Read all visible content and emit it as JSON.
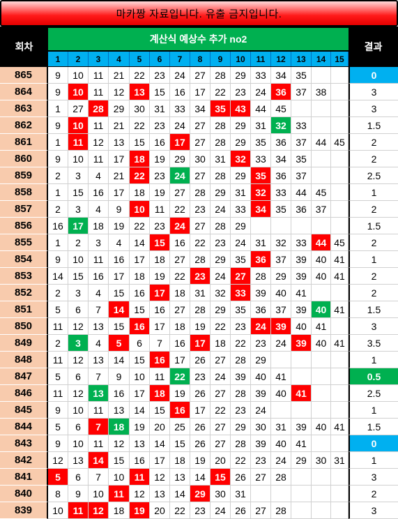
{
  "banner": "마카짱 자료입니다. 유출 금지입니다.",
  "header": {
    "round_label": "회차",
    "title": "계산식 예상수 추가 no2",
    "result_label": "결과",
    "cols": [
      "1",
      "2",
      "3",
      "4",
      "5",
      "6",
      "7",
      "8",
      "9",
      "10",
      "11",
      "12",
      "13",
      "14",
      "15"
    ]
  },
  "colors": {
    "red": "#ff0000",
    "green": "#00b050",
    "blue": "#00b0f0",
    "round_bg": "#f8cbad"
  },
  "rows": [
    {
      "round": "865",
      "cells": [
        "9",
        "10",
        "11",
        "21",
        "22",
        "23",
        "24",
        "27",
        "28",
        "29",
        "33",
        "34",
        "35",
        "",
        ""
      ],
      "red": [],
      "green": [],
      "result": "0",
      "result_style": "blue"
    },
    {
      "round": "864",
      "cells": [
        "9",
        "10",
        "11",
        "12",
        "13",
        "15",
        "16",
        "17",
        "22",
        "23",
        "24",
        "36",
        "37",
        "38",
        ""
      ],
      "red": [
        1,
        4,
        11
      ],
      "green": [],
      "result": "3",
      "result_style": ""
    },
    {
      "round": "863",
      "cells": [
        "1",
        "27",
        "28",
        "29",
        "30",
        "31",
        "33",
        "34",
        "35",
        "43",
        "44",
        "45",
        "",
        "",
        ""
      ],
      "red": [
        2,
        8,
        9
      ],
      "green": [],
      "result": "3",
      "result_style": ""
    },
    {
      "round": "862",
      "cells": [
        "9",
        "10",
        "11",
        "21",
        "22",
        "23",
        "24",
        "27",
        "28",
        "29",
        "31",
        "32",
        "33",
        "",
        ""
      ],
      "red": [
        1
      ],
      "green": [
        11
      ],
      "result": "1.5",
      "result_style": ""
    },
    {
      "round": "861",
      "cells": [
        "1",
        "11",
        "12",
        "13",
        "15",
        "16",
        "17",
        "27",
        "28",
        "29",
        "35",
        "36",
        "37",
        "44",
        "45"
      ],
      "red": [
        1,
        6
      ],
      "green": [],
      "result": "2",
      "result_style": ""
    },
    {
      "round": "860",
      "cells": [
        "9",
        "10",
        "11",
        "17",
        "18",
        "19",
        "29",
        "30",
        "31",
        "32",
        "33",
        "34",
        "35",
        "",
        ""
      ],
      "red": [
        4,
        9
      ],
      "green": [],
      "result": "2",
      "result_style": ""
    },
    {
      "round": "859",
      "cells": [
        "2",
        "3",
        "4",
        "21",
        "22",
        "23",
        "24",
        "27",
        "28",
        "29",
        "35",
        "36",
        "37",
        "",
        ""
      ],
      "red": [
        4,
        10
      ],
      "green": [
        6
      ],
      "result": "2.5",
      "result_style": ""
    },
    {
      "round": "858",
      "cells": [
        "1",
        "15",
        "16",
        "17",
        "18",
        "19",
        "27",
        "28",
        "29",
        "31",
        "32",
        "33",
        "44",
        "45",
        ""
      ],
      "red": [
        10
      ],
      "green": [],
      "result": "1",
      "result_style": ""
    },
    {
      "round": "857",
      "cells": [
        "2",
        "3",
        "4",
        "9",
        "10",
        "11",
        "22",
        "23",
        "24",
        "33",
        "34",
        "35",
        "36",
        "37",
        ""
      ],
      "red": [
        4,
        10
      ],
      "green": [],
      "result": "2",
      "result_style": ""
    },
    {
      "round": "856",
      "cells": [
        "16",
        "17",
        "18",
        "19",
        "22",
        "23",
        "24",
        "27",
        "28",
        "29",
        "",
        "",
        "",
        "",
        ""
      ],
      "red": [
        6
      ],
      "green": [
        1
      ],
      "result": "1.5",
      "result_style": ""
    },
    {
      "round": "855",
      "cells": [
        "1",
        "2",
        "3",
        "4",
        "14",
        "15",
        "16",
        "22",
        "23",
        "24",
        "31",
        "32",
        "33",
        "44",
        "45"
      ],
      "red": [
        5,
        13
      ],
      "green": [],
      "result": "2",
      "result_style": ""
    },
    {
      "round": "854",
      "cells": [
        "9",
        "10",
        "11",
        "16",
        "17",
        "18",
        "27",
        "28",
        "29",
        "35",
        "36",
        "37",
        "39",
        "40",
        "41"
      ],
      "red": [
        10
      ],
      "green": [],
      "result": "1",
      "result_style": ""
    },
    {
      "round": "853",
      "cells": [
        "14",
        "15",
        "16",
        "17",
        "18",
        "19",
        "22",
        "23",
        "24",
        "27",
        "28",
        "29",
        "39",
        "40",
        "41"
      ],
      "red": [
        7,
        9
      ],
      "green": [],
      "result": "2",
      "result_style": ""
    },
    {
      "round": "852",
      "cells": [
        "2",
        "3",
        "4",
        "15",
        "16",
        "17",
        "18",
        "31",
        "32",
        "33",
        "39",
        "40",
        "41",
        "",
        ""
      ],
      "red": [
        5,
        9
      ],
      "green": [],
      "result": "2",
      "result_style": ""
    },
    {
      "round": "851",
      "cells": [
        "5",
        "6",
        "7",
        "14",
        "15",
        "16",
        "27",
        "28",
        "29",
        "35",
        "36",
        "37",
        "39",
        "40",
        "41"
      ],
      "red": [
        3
      ],
      "green": [
        13
      ],
      "result": "1.5",
      "result_style": ""
    },
    {
      "round": "850",
      "cells": [
        "11",
        "12",
        "13",
        "15",
        "16",
        "17",
        "18",
        "19",
        "22",
        "23",
        "24",
        "39",
        "40",
        "41",
        ""
      ],
      "red": [
        4,
        10,
        11
      ],
      "green": [],
      "result": "3",
      "result_style": ""
    },
    {
      "round": "849",
      "cells": [
        "2",
        "3",
        "4",
        "5",
        "6",
        "7",
        "16",
        "17",
        "18",
        "22",
        "23",
        "24",
        "39",
        "40",
        "41"
      ],
      "red": [
        3,
        7,
        12
      ],
      "green": [
        1
      ],
      "result": "3.5",
      "result_style": ""
    },
    {
      "round": "848",
      "cells": [
        "11",
        "12",
        "13",
        "14",
        "15",
        "16",
        "17",
        "26",
        "27",
        "28",
        "29",
        "",
        "",
        "",
        ""
      ],
      "red": [
        5
      ],
      "green": [],
      "result": "1",
      "result_style": ""
    },
    {
      "round": "847",
      "cells": [
        "5",
        "6",
        "7",
        "9",
        "10",
        "11",
        "22",
        "23",
        "24",
        "39",
        "40",
        "41",
        "",
        "",
        ""
      ],
      "red": [],
      "green": [
        6
      ],
      "result": "0.5",
      "result_style": "green"
    },
    {
      "round": "846",
      "cells": [
        "11",
        "12",
        "13",
        "16",
        "17",
        "18",
        "19",
        "26",
        "27",
        "28",
        "39",
        "40",
        "41",
        "",
        ""
      ],
      "red": [
        5,
        12
      ],
      "green": [
        2
      ],
      "result": "2.5",
      "result_style": ""
    },
    {
      "round": "845",
      "cells": [
        "9",
        "10",
        "11",
        "13",
        "14",
        "15",
        "16",
        "17",
        "22",
        "23",
        "24",
        "",
        "",
        "",
        ""
      ],
      "red": [
        6
      ],
      "green": [],
      "result": "1",
      "result_style": ""
    },
    {
      "round": "844",
      "cells": [
        "5",
        "6",
        "7",
        "18",
        "19",
        "20",
        "25",
        "26",
        "27",
        "29",
        "30",
        "31",
        "39",
        "40",
        "41"
      ],
      "red": [
        2
      ],
      "green": [
        3
      ],
      "result": "1.5",
      "result_style": ""
    },
    {
      "round": "843",
      "cells": [
        "9",
        "10",
        "11",
        "12",
        "13",
        "14",
        "15",
        "26",
        "27",
        "28",
        "39",
        "40",
        "41",
        "",
        ""
      ],
      "red": [],
      "green": [],
      "result": "0",
      "result_style": "blue"
    },
    {
      "round": "842",
      "cells": [
        "12",
        "13",
        "14",
        "15",
        "16",
        "17",
        "18",
        "19",
        "20",
        "22",
        "23",
        "24",
        "29",
        "30",
        "31"
      ],
      "red": [
        2
      ],
      "green": [],
      "result": "1",
      "result_style": ""
    },
    {
      "round": "841",
      "cells": [
        "5",
        "6",
        "7",
        "10",
        "11",
        "12",
        "13",
        "14",
        "15",
        "26",
        "27",
        "28",
        "",
        "",
        ""
      ],
      "red": [
        0,
        4,
        8
      ],
      "green": [],
      "result": "3",
      "result_style": ""
    },
    {
      "round": "840",
      "cells": [
        "8",
        "9",
        "10",
        "11",
        "12",
        "13",
        "14",
        "29",
        "30",
        "31",
        "",
        "",
        "",
        "",
        ""
      ],
      "red": [
        3,
        7
      ],
      "green": [],
      "result": "2",
      "result_style": ""
    },
    {
      "round": "839",
      "cells": [
        "10",
        "11",
        "12",
        "18",
        "19",
        "20",
        "22",
        "23",
        "24",
        "26",
        "27",
        "28",
        "",
        "",
        ""
      ],
      "red": [
        1,
        2,
        4
      ],
      "green": [],
      "result": "3",
      "result_style": ""
    }
  ]
}
